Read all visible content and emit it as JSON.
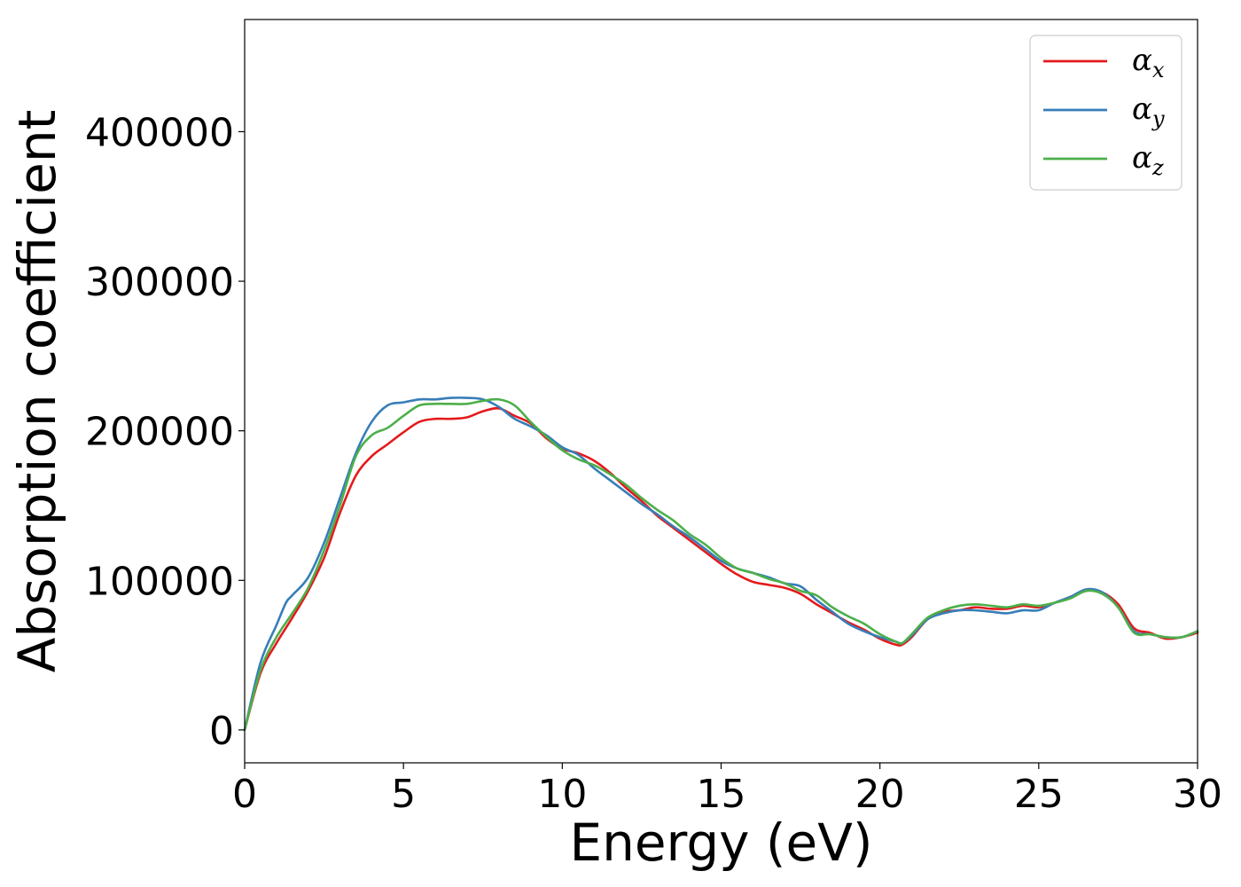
{
  "chart_data": {
    "type": "line",
    "title": "",
    "xlabel": "Energy (eV)",
    "ylabel": "Absorption coefficient",
    "xlim": [
      0,
      30
    ],
    "ylim": [
      -22000,
      475000
    ],
    "xticks": [
      0,
      5,
      10,
      15,
      20,
      25,
      30
    ],
    "xtick_labels": [
      "0",
      "5",
      "10",
      "15",
      "20",
      "25",
      "30"
    ],
    "yticks": [
      0,
      100000,
      200000,
      300000,
      400000
    ],
    "ytick_labels": [
      "0",
      "100000",
      "200000",
      "300000",
      "400000"
    ],
    "grid": false,
    "legend_position": "top-right",
    "series": [
      {
        "name": "α_x",
        "symbol": "α",
        "subscript": "x",
        "color": "#e41a1c",
        "x": [
          0,
          0.5,
          1,
          1.5,
          2,
          2.5,
          3,
          3.5,
          4,
          4.5,
          5,
          5.5,
          6,
          6.5,
          7,
          7.5,
          8,
          8.5,
          9,
          9.5,
          10,
          10.5,
          11,
          11.5,
          12,
          12.5,
          13,
          13.5,
          14,
          14.5,
          15,
          15.5,
          16,
          16.5,
          17,
          17.5,
          18,
          18.5,
          19,
          19.5,
          20,
          20.5,
          20.7,
          21,
          21.5,
          22,
          22.5,
          23,
          23.5,
          24,
          24.5,
          25,
          25.5,
          26,
          26.5,
          27,
          27.5,
          28,
          28.5,
          29,
          29.5,
          30
        ],
        "y": [
          0,
          38000,
          58000,
          75000,
          93000,
          115000,
          145000,
          170000,
          183000,
          191000,
          199000,
          206000,
          208000,
          208000,
          209000,
          213000,
          215000,
          210000,
          205000,
          195000,
          188000,
          185000,
          180000,
          172000,
          162000,
          153000,
          143000,
          135000,
          127000,
          119000,
          111000,
          104000,
          99000,
          97000,
          95000,
          91000,
          84000,
          78000,
          72000,
          67000,
          61000,
          57000,
          57000,
          62000,
          74000,
          79000,
          80000,
          82000,
          81000,
          81000,
          83000,
          82000,
          85000,
          89000,
          93000,
          92000,
          84000,
          68000,
          65000,
          61000,
          62000,
          65000
        ]
      },
      {
        "name": "α_y",
        "symbol": "α",
        "subscript": "y",
        "color": "#377eb8",
        "x": [
          0,
          0.5,
          1,
          1.3,
          1.5,
          2,
          2.5,
          3,
          3.5,
          4,
          4.5,
          5,
          5.5,
          6,
          6.5,
          7,
          7.5,
          8,
          8.5,
          9,
          9.5,
          10,
          10.5,
          11,
          11.5,
          12,
          12.5,
          13,
          13.5,
          14,
          14.5,
          15,
          15.5,
          16,
          16.5,
          17,
          17.5,
          18,
          18.5,
          19,
          19.5,
          20,
          20.5,
          20.7,
          21,
          21.5,
          22,
          22.5,
          23,
          23.5,
          24,
          24.5,
          25,
          25.5,
          26,
          26.5,
          27,
          27.5,
          28,
          28.5,
          29,
          29.5,
          30
        ],
        "y": [
          0,
          45000,
          70000,
          85000,
          90000,
          102000,
          125000,
          155000,
          185000,
          206000,
          217000,
          219000,
          221000,
          221000,
          222000,
          222000,
          221000,
          216000,
          208000,
          203000,
          197000,
          189000,
          184000,
          175000,
          167000,
          159000,
          151000,
          144000,
          136000,
          129000,
          121000,
          113000,
          108000,
          105000,
          102000,
          98000,
          96000,
          87000,
          79000,
          71000,
          66000,
          62000,
          59000,
          58000,
          63000,
          74000,
          78000,
          80000,
          80000,
          79000,
          78000,
          80000,
          80000,
          85000,
          89000,
          94000,
          92000,
          82000,
          66000,
          64000,
          62000,
          62000,
          66000
        ]
      },
      {
        "name": "α_z",
        "symbol": "α",
        "subscript": "z",
        "color": "#4daf4a",
        "x": [
          0,
          0.5,
          1,
          1.5,
          2,
          2.5,
          3,
          3.5,
          4,
          4.5,
          5,
          5.5,
          6,
          6.5,
          7,
          7.5,
          8,
          8.5,
          9,
          9.5,
          10,
          10.5,
          11,
          11.5,
          12,
          12.5,
          13,
          13.5,
          14,
          14.5,
          15,
          15.5,
          16,
          16.5,
          17,
          17.5,
          18,
          18.5,
          19,
          19.5,
          20,
          20.5,
          20.7,
          21,
          21.5,
          22,
          22.5,
          23,
          23.5,
          24,
          24.5,
          25,
          25.5,
          26,
          26.5,
          27,
          27.5,
          28,
          28.5,
          29,
          29.5,
          30
        ],
        "y": [
          0,
          40000,
          62000,
          78000,
          95000,
          120000,
          150000,
          183000,
          197000,
          202000,
          210000,
          217000,
          218000,
          218000,
          218000,
          220000,
          221000,
          217000,
          206000,
          196000,
          187000,
          181000,
          177000,
          171000,
          164000,
          155000,
          147000,
          140000,
          131000,
          124000,
          115000,
          108000,
          105000,
          101000,
          98000,
          93000,
          90000,
          82000,
          76000,
          71000,
          64000,
          59000,
          58000,
          64000,
          75000,
          80000,
          83000,
          84000,
          83000,
          82000,
          84000,
          83000,
          85000,
          88000,
          93000,
          91000,
          82000,
          65000,
          64000,
          62000,
          62000,
          66000
        ]
      }
    ]
  }
}
